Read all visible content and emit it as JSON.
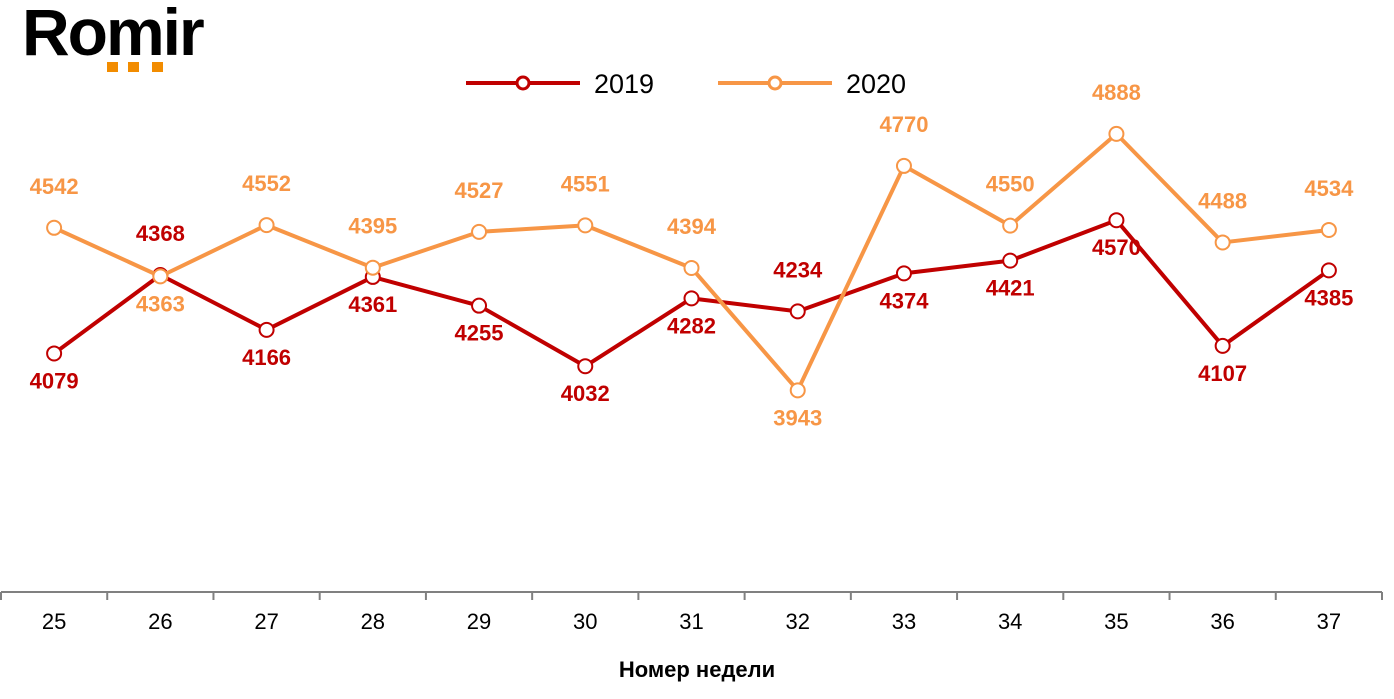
{
  "logo": {
    "text": "Romir"
  },
  "chart_data": {
    "type": "line",
    "title": "",
    "xlabel": "Номер недели",
    "ylabel": "",
    "categories": [
      "25",
      "26",
      "27",
      "28",
      "29",
      "30",
      "31",
      "32",
      "33",
      "34",
      "35",
      "36",
      "37"
    ],
    "ylim": [
      3200,
      5000
    ],
    "grid": false,
    "legend_position": "top",
    "series": [
      {
        "name": "2019",
        "color": "#C00000",
        "values": [
          4079,
          4368,
          4166,
          4361,
          4255,
          4032,
          4282,
          4234,
          4374,
          4421,
          4570,
          4107,
          4385
        ]
      },
      {
        "name": "2020",
        "color": "#F79646",
        "values": [
          4542,
          4363,
          4552,
          4395,
          4527,
          4551,
          4394,
          3943,
          4770,
          4550,
          4888,
          4488,
          4534
        ]
      }
    ]
  }
}
